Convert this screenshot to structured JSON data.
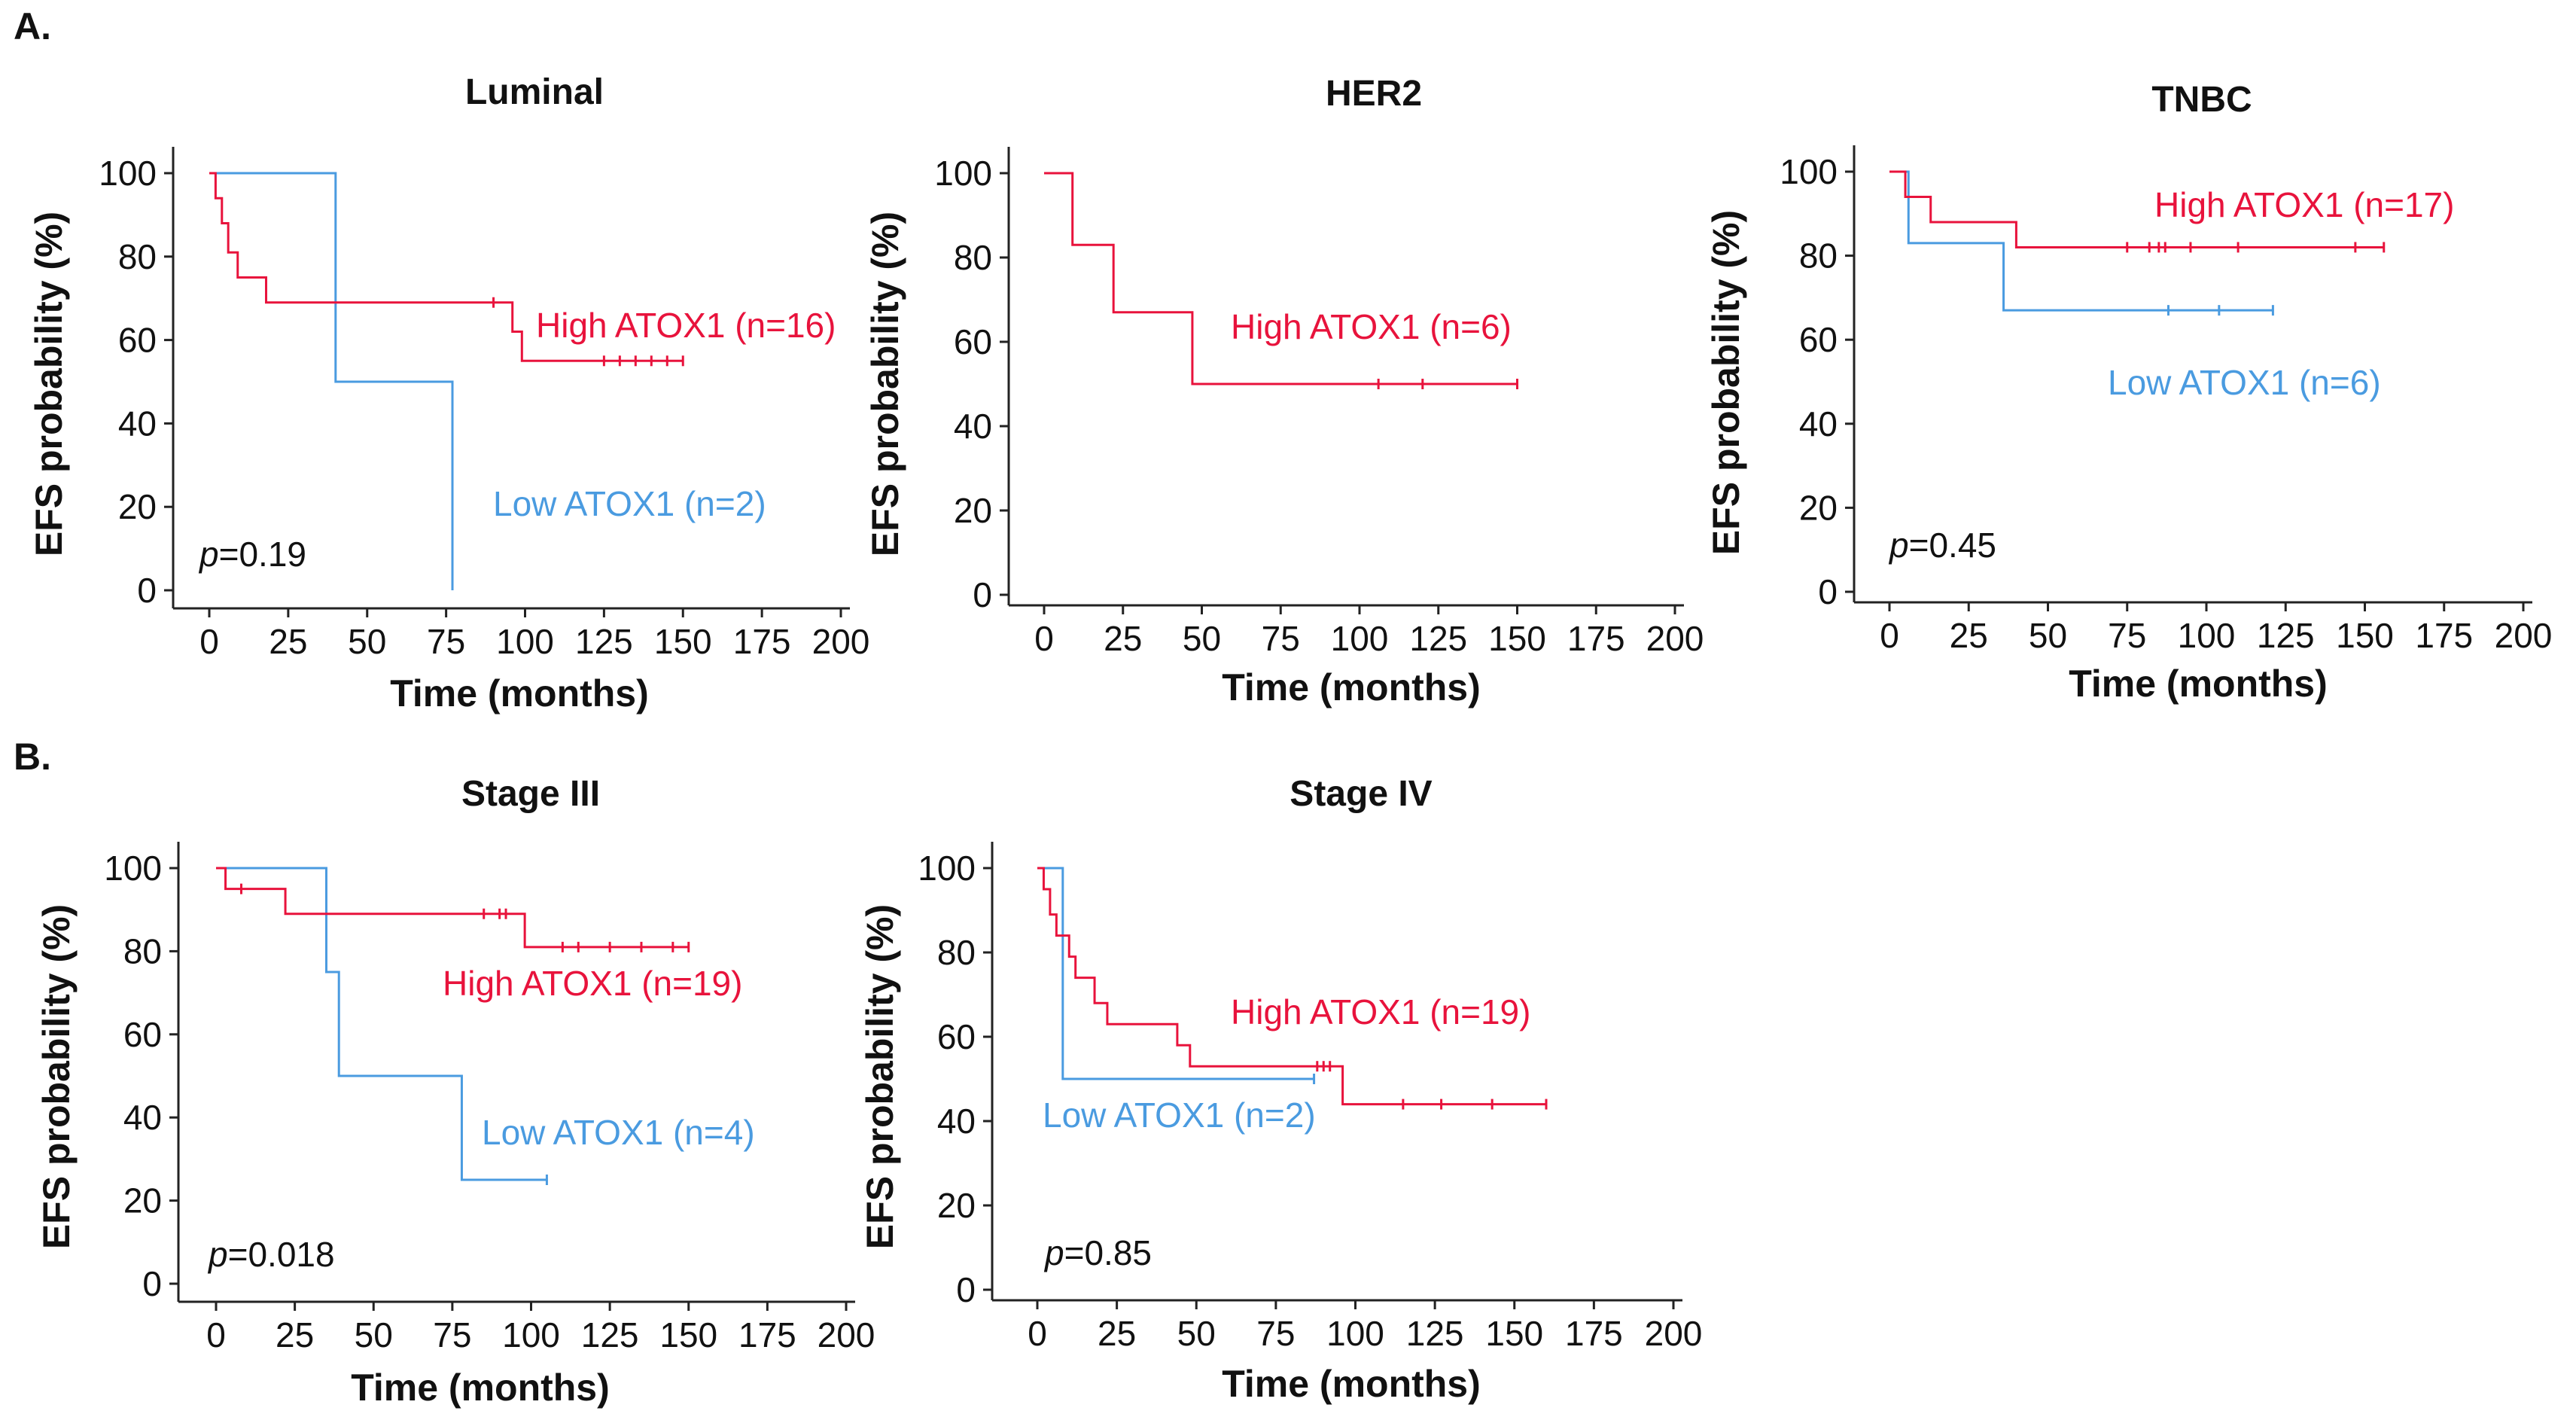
{
  "figure": {
    "panel_labels": [
      "A.",
      "B."
    ]
  },
  "colors": {
    "high": "#e8133c",
    "low": "#4a9be0",
    "axis": "#222222",
    "text": "#111111"
  },
  "chart_data": [
    {
      "id": "luminal",
      "type": "line",
      "step": true,
      "title": "Luminal",
      "xlabel": "Time (months)",
      "ylabel": "EFS probability  (%)",
      "xlim": [
        0,
        200
      ],
      "ylim": [
        0,
        100
      ],
      "xticks": [
        "0",
        "25",
        "50",
        "75",
        "100",
        "125",
        "150",
        "175",
        "200"
      ],
      "yticks": [
        "0",
        "20",
        "40",
        "60",
        "80",
        "100"
      ],
      "pvalue": {
        "prefix": "p",
        "value": "=0.19"
      },
      "series": [
        {
          "name": "High ATOX1 (n=16)",
          "color_key": "high",
          "points": [
            [
              0,
              100
            ],
            [
              2,
              94
            ],
            [
              4,
              88
            ],
            [
              6,
              81
            ],
            [
              9,
              75
            ],
            [
              18,
              69
            ],
            [
              94,
              69
            ],
            [
              96,
              62
            ],
            [
              99,
              55
            ],
            [
              150,
              55
            ]
          ],
          "censors": [
            [
              90,
              69
            ],
            [
              125,
              55
            ],
            [
              130,
              55
            ],
            [
              135,
              55
            ],
            [
              140,
              55
            ],
            [
              145,
              55
            ],
            [
              150,
              55
            ]
          ]
        },
        {
          "name": "Low ATOX1 (n=2)",
          "color_key": "low",
          "points": [
            [
              0,
              100
            ],
            [
              40,
              100
            ],
            [
              40,
              50
            ],
            [
              77,
              50
            ],
            [
              77,
              0
            ]
          ],
          "censors": []
        }
      ]
    },
    {
      "id": "her2",
      "type": "line",
      "step": true,
      "title": "HER2",
      "xlabel": "Time (months)",
      "ylabel": "EFS probability  (%)",
      "xlim": [
        0,
        200
      ],
      "ylim": [
        0,
        100
      ],
      "xticks": [
        "0",
        "25",
        "50",
        "75",
        "100",
        "125",
        "150",
        "175",
        "200"
      ],
      "yticks": [
        "0",
        "20",
        "40",
        "60",
        "80",
        "100"
      ],
      "pvalue": null,
      "series": [
        {
          "name": "High ATOX1 (n=6)",
          "color_key": "high",
          "points": [
            [
              0,
              100
            ],
            [
              9,
              100
            ],
            [
              9,
              83
            ],
            [
              22,
              83
            ],
            [
              22,
              67
            ],
            [
              47,
              67
            ],
            [
              47,
              50
            ],
            [
              150,
              50
            ]
          ],
          "censors": [
            [
              106,
              50
            ],
            [
              120,
              50
            ],
            [
              150,
              50
            ]
          ]
        }
      ]
    },
    {
      "id": "tnbc",
      "type": "line",
      "step": true,
      "title": "TNBC",
      "xlabel": "Time (months)",
      "ylabel": "EFS probability  (%)",
      "xlim": [
        0,
        200
      ],
      "ylim": [
        0,
        100
      ],
      "xticks": [
        "0",
        "25",
        "50",
        "75",
        "100",
        "125",
        "150",
        "175",
        "200"
      ],
      "yticks": [
        "0",
        "20",
        "40",
        "60",
        "80",
        "100"
      ],
      "pvalue": {
        "prefix": "p",
        "value": "=0.45"
      },
      "series": [
        {
          "name": "High ATOX1 (n=17)",
          "color_key": "high",
          "points": [
            [
              0,
              100
            ],
            [
              5,
              100
            ],
            [
              5,
              94
            ],
            [
              13,
              94
            ],
            [
              13,
              88
            ],
            [
              40,
              88
            ],
            [
              40,
              82
            ],
            [
              156,
              82
            ]
          ],
          "censors": [
            [
              75,
              82
            ],
            [
              82,
              82
            ],
            [
              85,
              82
            ],
            [
              87,
              82
            ],
            [
              95,
              82
            ],
            [
              110,
              82
            ],
            [
              147,
              82
            ],
            [
              156,
              82
            ]
          ]
        },
        {
          "name": "Low ATOX1 (n=6)",
          "color_key": "low",
          "points": [
            [
              0,
              100
            ],
            [
              6,
              100
            ],
            [
              6,
              83
            ],
            [
              36,
              83
            ],
            [
              36,
              67
            ],
            [
              121,
              67
            ]
          ],
          "censors": [
            [
              88,
              67
            ],
            [
              104,
              67
            ],
            [
              121,
              67
            ]
          ]
        }
      ]
    },
    {
      "id": "stage3",
      "type": "line",
      "step": true,
      "title": "Stage III",
      "xlabel": "Time (months)",
      "ylabel": "EFS probability  (%)",
      "xlim": [
        0,
        200
      ],
      "ylim": [
        0,
        100
      ],
      "xticks": [
        "0",
        "25",
        "50",
        "75",
        "100",
        "125",
        "150",
        "175",
        "200"
      ],
      "yticks": [
        "0",
        "20",
        "40",
        "60",
        "80",
        "100"
      ],
      "pvalue": {
        "prefix": "p",
        "value": "=0.018"
      },
      "series": [
        {
          "name": "High ATOX1 (n=19)",
          "color_key": "high",
          "points": [
            [
              0,
              100
            ],
            [
              3,
              100
            ],
            [
              3,
              95
            ],
            [
              22,
              95
            ],
            [
              22,
              89
            ],
            [
              98,
              89
            ],
            [
              98,
              81
            ],
            [
              150,
              81
            ]
          ],
          "censors": [
            [
              8,
              95
            ],
            [
              85,
              89
            ],
            [
              90,
              89
            ],
            [
              92,
              89
            ],
            [
              110,
              81
            ],
            [
              115,
              81
            ],
            [
              125,
              81
            ],
            [
              135,
              81
            ],
            [
              145,
              81
            ],
            [
              150,
              81
            ]
          ]
        },
        {
          "name": "Low ATOX1 (n=4)",
          "color_key": "low",
          "points": [
            [
              0,
              100
            ],
            [
              35,
              100
            ],
            [
              35,
              75
            ],
            [
              39,
              75
            ],
            [
              39,
              50
            ],
            [
              78,
              50
            ],
            [
              78,
              25
            ],
            [
              105,
              25
            ]
          ],
          "censors": [
            [
              105,
              25
            ]
          ]
        }
      ]
    },
    {
      "id": "stage4",
      "type": "line",
      "step": true,
      "title": "Stage IV",
      "xlabel": "Time (months)",
      "ylabel": "EFS probability  (%)",
      "xlim": [
        0,
        200
      ],
      "ylim": [
        0,
        100
      ],
      "xticks": [
        "0",
        "25",
        "50",
        "75",
        "100",
        "125",
        "150",
        "175",
        "200"
      ],
      "yticks": [
        "0",
        "20",
        "40",
        "60",
        "80",
        "100"
      ],
      "pvalue": {
        "prefix": "p",
        "value": "=0.85"
      },
      "series": [
        {
          "name": "High ATOX1 (n=19)",
          "color_key": "high",
          "points": [
            [
              0,
              100
            ],
            [
              2,
              95
            ],
            [
              4,
              89
            ],
            [
              6,
              84
            ],
            [
              10,
              79
            ],
            [
              12,
              74
            ],
            [
              18,
              68
            ],
            [
              22,
              63
            ],
            [
              42,
              63
            ],
            [
              44,
              58
            ],
            [
              48,
              53
            ],
            [
              96,
              53
            ],
            [
              96,
              44
            ],
            [
              160,
              44
            ]
          ],
          "censors": [
            [
              88,
              53
            ],
            [
              90,
              53
            ],
            [
              92,
              53
            ],
            [
              115,
              44
            ],
            [
              127,
              44
            ],
            [
              143,
              44
            ],
            [
              160,
              44
            ]
          ]
        },
        {
          "name": "Low ATOX1 (n=2)",
          "color_key": "low",
          "points": [
            [
              0,
              100
            ],
            [
              8,
              100
            ],
            [
              8,
              50
            ],
            [
              87,
              50
            ]
          ],
          "censors": [
            [
              87,
              50
            ]
          ]
        }
      ]
    }
  ]
}
